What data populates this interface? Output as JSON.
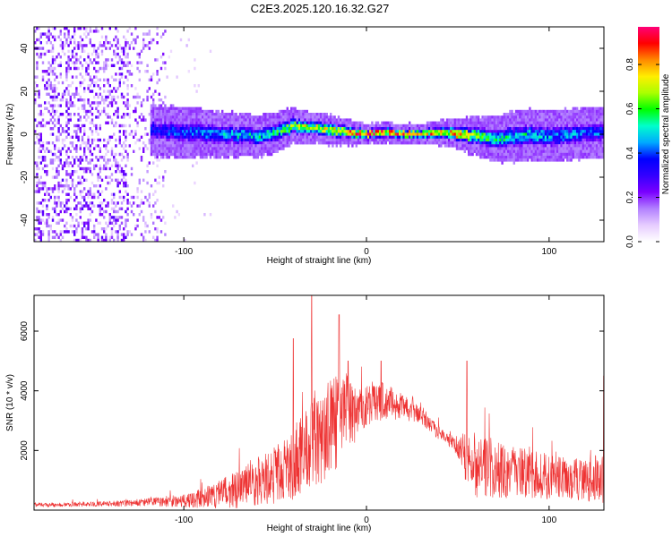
{
  "title": "C2E3.2025.120.16.32.G27",
  "chart_data": [
    {
      "type": "heatmap",
      "title": "C2E3.2025.120.16.32.G27",
      "xlabel": "Height of straight line (km)",
      "ylabel": "Frequency (Hz)",
      "xlim": [
        -182,
        130
      ],
      "ylim": [
        -50,
        50
      ],
      "xticks": [
        -100,
        0,
        100
      ],
      "xtick_labels": [
        "-100",
        "0",
        "100"
      ],
      "yticks": [
        -40,
        -20,
        0,
        20,
        40
      ],
      "ytick_labels": [
        "-40",
        "-20",
        "0",
        "20",
        "40"
      ],
      "colorbar": {
        "label": "Normalized spectral amplitude",
        "range": [
          0.0,
          0.97
        ],
        "ticks": [
          0.0,
          0.2,
          0.4,
          0.6,
          0.8
        ],
        "tick_labels": [
          "0.0",
          "0.2",
          "0.4",
          "0.6",
          "0.8"
        ],
        "colormap": [
          "#ffffff",
          "#e6ccff",
          "#b280ff",
          "#7a00ff",
          "#3300ff",
          "#0000ff",
          "#00aaff",
          "#00ffcc",
          "#00ff00",
          "#aaff00",
          "#ffee00",
          "#ff8800",
          "#ff0000",
          "#ff0077"
        ]
      },
      "ridge": {
        "x": [
          -118,
          -100,
          -80,
          -60,
          -50,
          -40,
          -30,
          -20,
          -10,
          0,
          10,
          20,
          30,
          40,
          50,
          60,
          70,
          80,
          90,
          100,
          110,
          120,
          130
        ],
        "freq": [
          2,
          1,
          0,
          -1,
          1,
          4,
          3,
          2,
          1,
          0,
          1,
          0,
          0,
          1,
          0,
          -1,
          -2,
          -1,
          0,
          -1,
          0,
          1,
          1
        ],
        "amplitude": [
          0.35,
          0.4,
          0.45,
          0.5,
          0.55,
          0.65,
          0.7,
          0.75,
          0.8,
          0.95,
          0.85,
          0.9,
          0.8,
          0.75,
          0.85,
          0.6,
          0.55,
          0.5,
          0.5,
          0.45,
          0.45,
          0.4,
          0.4
        ],
        "width_hz": [
          5,
          5,
          4.5,
          4,
          4,
          3.5,
          3,
          3,
          2.5,
          2,
          2,
          2,
          2,
          2.5,
          3,
          4,
          4.5,
          5,
          5,
          5,
          5,
          5,
          5
        ]
      },
      "noise_region_x": [
        -182,
        -110
      ]
    },
    {
      "type": "line",
      "xlabel": "Height of straight line (km)",
      "ylabel": "SNR (10 * v/v)",
      "xlim": [
        -182,
        130
      ],
      "ylim": [
        0,
        7200
      ],
      "xticks": [
        -100,
        0,
        100
      ],
      "xtick_labels": [
        "-100",
        "0",
        "100"
      ],
      "yticks": [
        2000,
        4000,
        6000
      ],
      "ytick_labels": [
        "2000",
        "4000",
        "6000"
      ],
      "color": "#ee3333",
      "envelope": {
        "x": [
          -182,
          -150,
          -130,
          -120,
          -100,
          -90,
          -80,
          -70,
          -60,
          -50,
          -40,
          -35,
          -30,
          -20,
          -15,
          -10,
          -5,
          0,
          5,
          10,
          15,
          20,
          30,
          35,
          40,
          45,
          50,
          55,
          60,
          70,
          80,
          90,
          100,
          110,
          120,
          130
        ],
        "base": [
          150,
          180,
          200,
          220,
          250,
          300,
          400,
          500,
          700,
          900,
          1200,
          1500,
          1800,
          2200,
          2600,
          2800,
          3000,
          3300,
          3400,
          3500,
          3400,
          3300,
          3100,
          2800,
          2500,
          2300,
          2000,
          1500,
          1200,
          1100,
          1000,
          950,
          900,
          850,
          800,
          800
        ],
        "spread": [
          120,
          150,
          200,
          250,
          400,
          600,
          900,
          1200,
          1500,
          1800,
          2200,
          2500,
          3000,
          3000,
          2800,
          2500,
          1500,
          1300,
          1200,
          1200,
          1000,
          800,
          600,
          500,
          400,
          400,
          700,
          1800,
          2000,
          1800,
          1600,
          1500,
          1400,
          1300,
          1300,
          1600
        ]
      },
      "peaks": [
        {
          "x": -30,
          "y": 7200
        },
        {
          "x": -15,
          "y": 6550
        },
        {
          "x": -40,
          "y": 5750
        },
        {
          "x": -10,
          "y": 5000
        },
        {
          "x": 8,
          "y": 5000
        },
        {
          "x": 55,
          "y": 5000
        },
        {
          "x": 130,
          "y": 4500
        }
      ]
    }
  ]
}
